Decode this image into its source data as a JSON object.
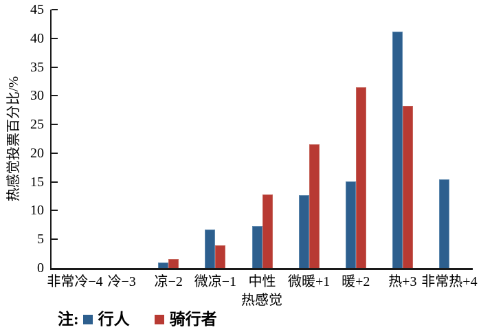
{
  "chart_data": {
    "type": "bar",
    "title": "",
    "xlabel": "热感觉",
    "ylabel": "热感觉投票百分比/%",
    "categories": [
      "非常冷−4",
      "冷−3",
      "凉−2",
      "微凉−1",
      "中性",
      "微暖+1",
      "暖+2",
      "热+3",
      "非常热+4"
    ],
    "series": [
      {
        "name": "行人",
        "color": "#2d5f8e",
        "edge_color": "#5d88ae",
        "values": [
          0,
          0,
          1.0,
          6.7,
          7.3,
          12.7,
          15.1,
          41.2,
          15.5
        ]
      },
      {
        "name": "骑行者",
        "color": "#b83a33",
        "edge_color": "#c5645a",
        "values": [
          0,
          0,
          1.5,
          4.0,
          12.8,
          21.6,
          31.5,
          28.2,
          0
        ]
      }
    ],
    "ylim": [
      0,
      45
    ],
    "yticks": [
      0,
      5,
      10,
      15,
      20,
      25,
      30,
      35,
      40,
      45
    ],
    "grid": false,
    "legend_position": "bottom",
    "legend_prefix": "注:"
  },
  "colors": {
    "axis": "#1a1a1a",
    "text": "#000000",
    "background": "#ffffff"
  }
}
